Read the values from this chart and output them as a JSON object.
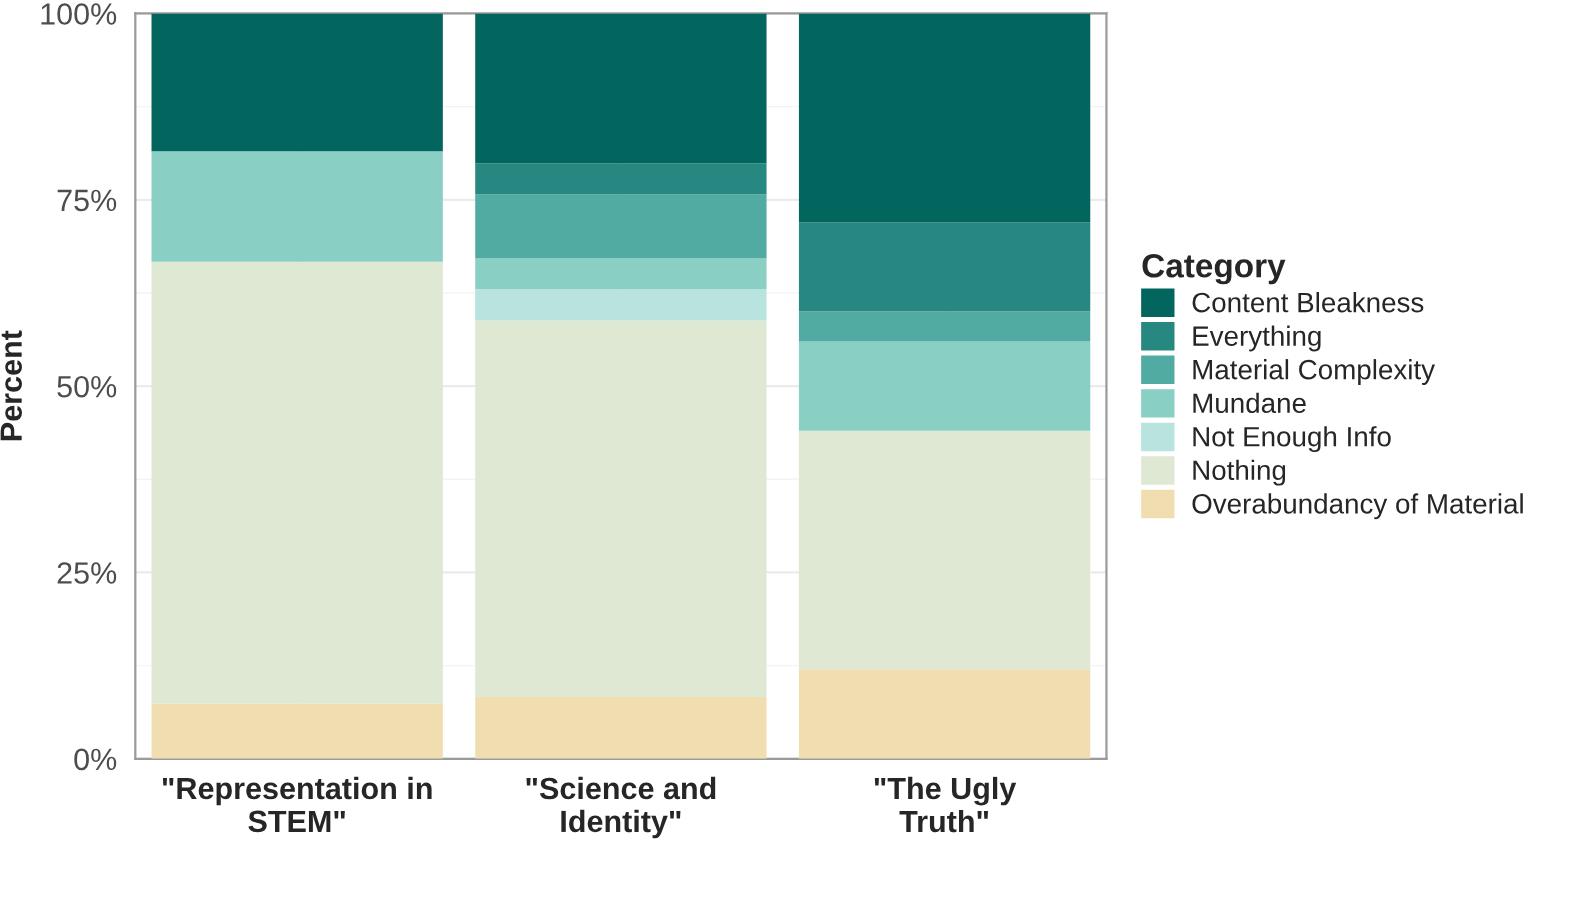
{
  "chart_data": {
    "type": "bar",
    "stacked": true,
    "ylabel": "Percent",
    "legend_title": "Category",
    "legend": "right",
    "grid": true,
    "categories": [
      "\"Representation in\nSTEM\"",
      "\"Science and\nIdentity\"",
      "\"The Ugly\nTruth\""
    ],
    "ylim": [
      0,
      100
    ],
    "yticks": [
      {
        "value": 0,
        "label": "0%"
      },
      {
        "value": 25,
        "label": "25%"
      },
      {
        "value": 50,
        "label": "50%"
      },
      {
        "value": 75,
        "label": "75%"
      },
      {
        "value": 100,
        "label": "100%"
      }
    ],
    "series": [
      {
        "name": "Overabundancy of Material",
        "color": "#f0deb1",
        "values": [
          7.4,
          8.3,
          12
        ]
      },
      {
        "name": "Nothing",
        "color": "#dfe8d3",
        "values": [
          59.3,
          50.5,
          32
        ]
      },
      {
        "name": "Not Enough Info",
        "color": "#b9e3de",
        "values": [
          0,
          4.2,
          0
        ]
      },
      {
        "name": "Mundane",
        "color": "#89cfc4",
        "values": [
          14.8,
          4.2,
          12
        ]
      },
      {
        "name": "Material Complexity",
        "color": "#52aba2",
        "values": [
          0,
          8.5,
          4
        ]
      },
      {
        "name": "Everything",
        "color": "#268880",
        "values": [
          0,
          4.2,
          12
        ]
      },
      {
        "name": "Content Bleakness",
        "color": "#02665e",
        "values": [
          18.5,
          20.1,
          28
        ]
      }
    ]
  }
}
